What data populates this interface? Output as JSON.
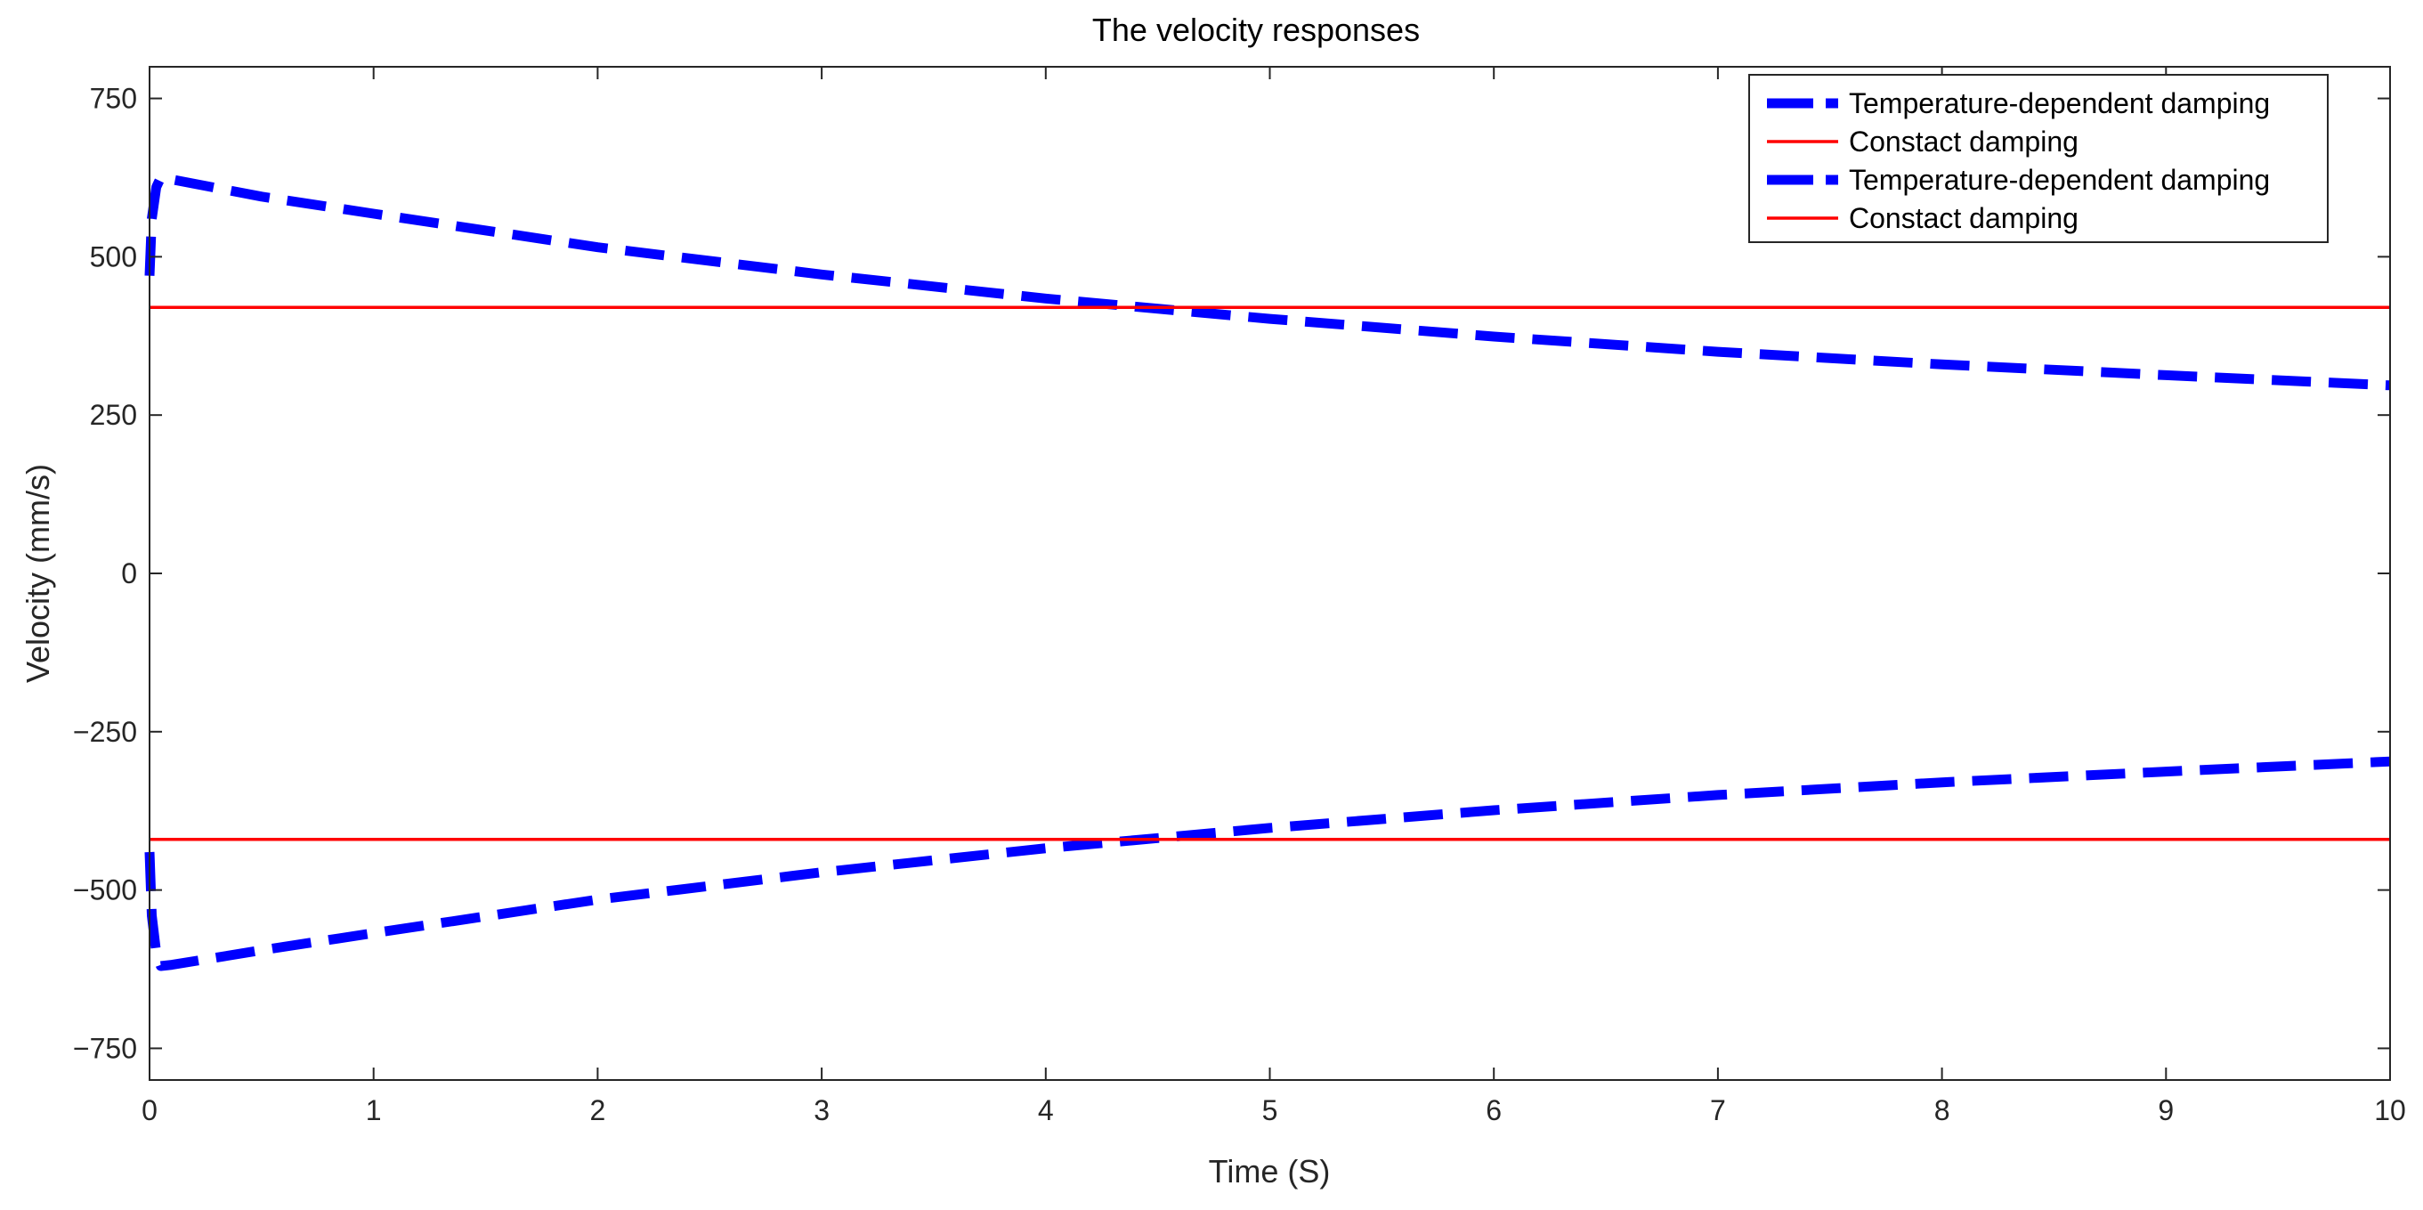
{
  "chart_data": {
    "type": "line",
    "title": "The velocity responses",
    "xlabel": "Time (S)",
    "ylabel": "Velocity (mm/s)",
    "xlim": [
      0,
      10
    ],
    "ylim": [
      -800,
      800
    ],
    "xticks": [
      0,
      1,
      2,
      3,
      4,
      5,
      6,
      7,
      8,
      9,
      10
    ],
    "yticks": [
      -750,
      -500,
      -250,
      0,
      250,
      500,
      750
    ],
    "ytick_labels": [
      "−750",
      "−500",
      "−250",
      "0",
      "250",
      "500",
      "750"
    ],
    "grid": false,
    "legend_location": "top-right",
    "series": [
      {
        "name": "Temperature-dependent damping",
        "color": "#0000ff",
        "style": "dashed",
        "x": [
          0,
          0.01,
          0.03,
          0.05,
          0.1,
          0.5,
          1,
          2,
          3,
          4,
          5,
          6,
          7,
          8,
          9,
          10
        ],
        "y": [
          470,
          560,
          610,
          625,
          622,
          595,
          568,
          515,
          472,
          434,
          402,
          374,
          350,
          330,
          313,
          297
        ]
      },
      {
        "name": "Constact damping",
        "color": "#ff0000",
        "style": "solid",
        "x": [
          0,
          10
        ],
        "y": [
          420,
          420
        ]
      },
      {
        "name": "Temperature-dependent damping",
        "color": "#0000ff",
        "style": "dashed",
        "x": [
          0,
          0.01,
          0.03,
          0.05,
          0.1,
          0.5,
          1,
          2,
          3,
          4,
          5,
          6,
          7,
          8,
          9,
          10
        ],
        "y": [
          -440,
          -540,
          -600,
          -620,
          -618,
          -595,
          -568,
          -515,
          -472,
          -434,
          -402,
          -374,
          -350,
          -330,
          -313,
          -297
        ]
      },
      {
        "name": "Constact damping",
        "color": "#ff0000",
        "style": "solid",
        "x": [
          0,
          10
        ],
        "y": [
          -420,
          -420
        ]
      }
    ]
  }
}
